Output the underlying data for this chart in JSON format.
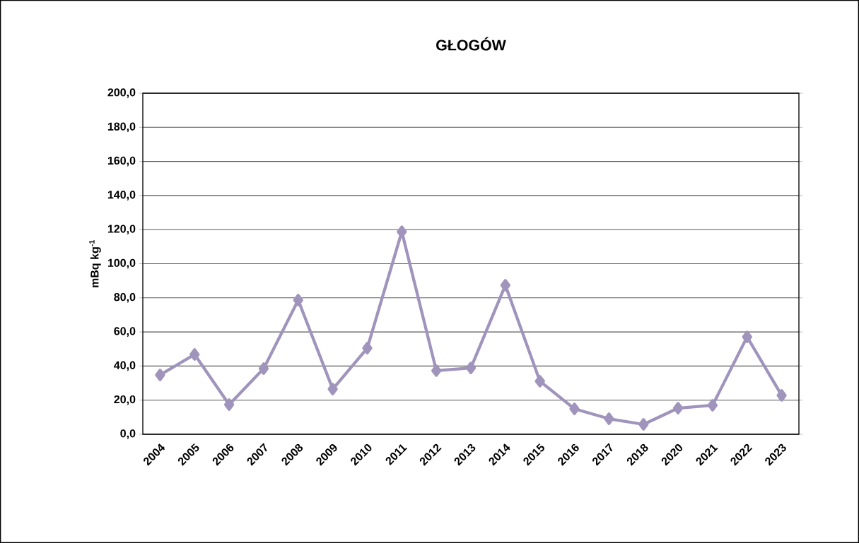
{
  "chart_data": {
    "type": "line",
    "title": "GŁOGÓW",
    "ylabel": "mBq kg$^{-1}$",
    "categories": [
      "2004",
      "2005",
      "2006",
      "2007",
      "2008",
      "2009",
      "2010",
      "2011",
      "2012",
      "2013",
      "2014",
      "2015",
      "2016",
      "2017",
      "2018",
      "2020",
      "2021",
      "2022",
      "2023"
    ],
    "series": [
      {
        "color": "#a094bc",
        "values": [
          34.8,
          46.8,
          17.4,
          38.5,
          78.7,
          26.5,
          50.5,
          118.8,
          37.3,
          38.9,
          87.4,
          31.1,
          14.9,
          9.1,
          5.8,
          15.3,
          17.0,
          57.1,
          22.8
        ]
      }
    ],
    "ylim": [
      0,
      200
    ],
    "yticks": [
      {
        "value": 0,
        "label": "0,0"
      },
      {
        "value": 20,
        "label": "20,0"
      },
      {
        "value": 40,
        "label": "40,0"
      },
      {
        "value": 60,
        "label": "60,0"
      },
      {
        "value": 80,
        "label": "80,0"
      },
      {
        "value": 100,
        "label": "100,0"
      },
      {
        "value": 120,
        "label": "120,0"
      },
      {
        "value": 140,
        "label": "140,0"
      },
      {
        "value": 160,
        "label": "160,0"
      },
      {
        "value": 180,
        "label": "180,0"
      },
      {
        "value": 200,
        "label": "200,0"
      }
    ],
    "grid": "y",
    "marker": "diamond",
    "line_style": "solid"
  }
}
